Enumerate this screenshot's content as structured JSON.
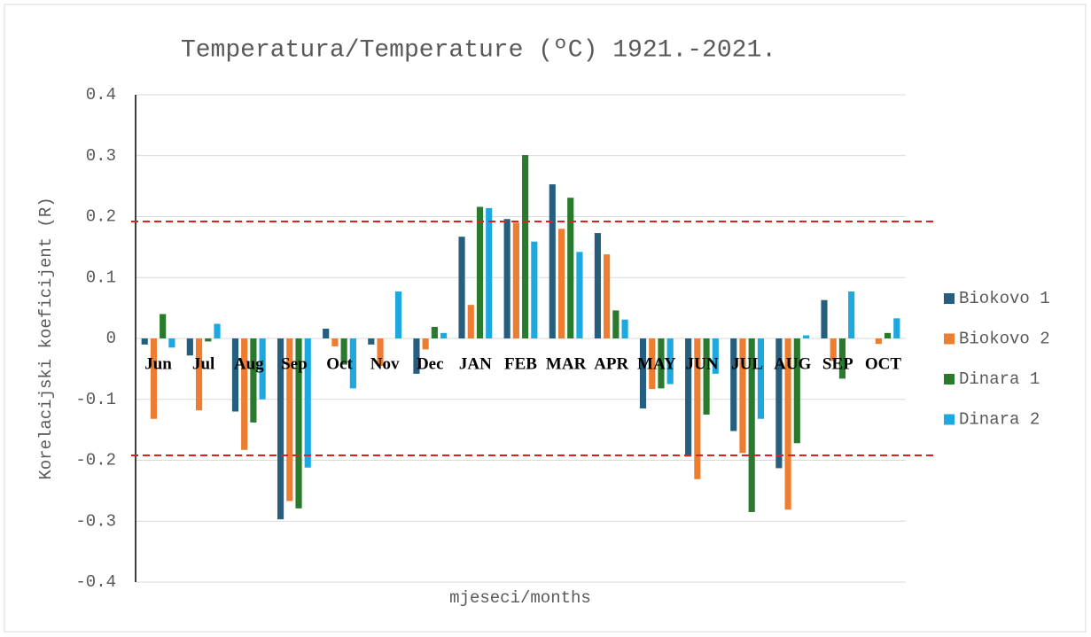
{
  "chart_data": {
    "type": "bar",
    "title": "Temperatura/Temperature (ºC) 1921.-2021.",
    "x_label": "mjeseci/months",
    "y_label": "Korelacijski koeficijent (R)",
    "categories": [
      "Jun",
      "Jul",
      "Aug",
      "Sep",
      "Oct",
      "Nov",
      "Dec",
      "JAN",
      "FEB",
      "MAR",
      "APR",
      "MAY",
      "JUN",
      "JUL",
      "AUG",
      "SEP",
      "OCT"
    ],
    "series": [
      {
        "name": "Biokovo 1",
        "color": "#255e7e",
        "values": [
          -0.01,
          -0.028,
          -0.12,
          -0.297,
          0.016,
          -0.01,
          -0.058,
          0.167,
          0.196,
          0.253,
          0.173,
          -0.115,
          -0.194,
          -0.152,
          -0.213,
          0.063,
          0
        ]
      },
      {
        "name": "Biokovo 2",
        "color": "#ed7d31",
        "values": [
          -0.132,
          -0.118,
          -0.183,
          -0.267,
          -0.013,
          -0.045,
          -0.018,
          0.055,
          0.19,
          0.18,
          0.138,
          -0.083,
          -0.231,
          -0.188,
          -0.281,
          -0.037,
          -0.009
        ]
      },
      {
        "name": "Dinara 1",
        "color": "#2a7a2e",
        "values": [
          0.04,
          -0.005,
          -0.138,
          -0.279,
          -0.043,
          0,
          0.019,
          0.216,
          0.301,
          0.231,
          0.046,
          -0.082,
          -0.125,
          -0.285,
          -0.172,
          -0.066,
          0.009
        ]
      },
      {
        "name": "Dinara 2",
        "color": "#1ea8e0",
        "values": [
          -0.015,
          0.024,
          -0.1,
          -0.212,
          -0.082,
          0.077,
          0.009,
          0.214,
          0.159,
          0.142,
          0.031,
          -0.075,
          -0.058,
          -0.132,
          0.005,
          0.077,
          0.033
        ]
      }
    ],
    "ylim": [
      -0.4,
      0.4
    ],
    "yticks": [
      0.4,
      0.3,
      0.2,
      0.1,
      0,
      -0.1,
      -0.2,
      -0.3,
      -0.4
    ],
    "grid": true,
    "reference_lines": [
      0.192,
      -0.192
    ],
    "reference_color": "#e02020",
    "legend": "right"
  }
}
